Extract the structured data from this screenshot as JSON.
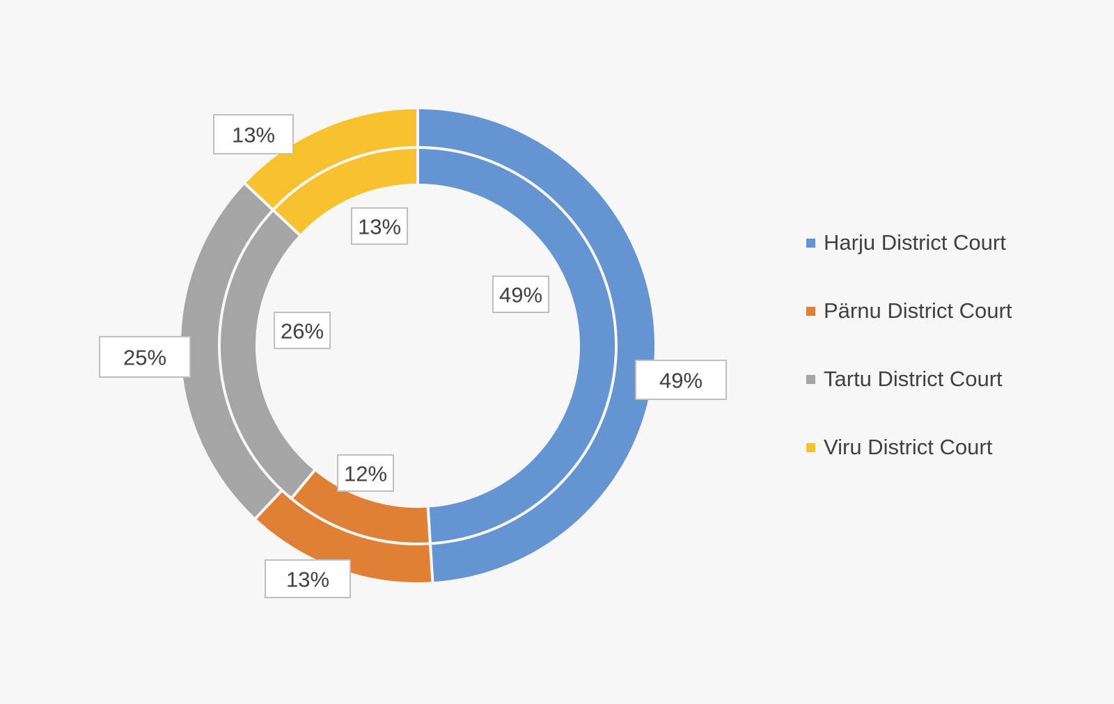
{
  "chart_data": {
    "type": "pie",
    "subtype": "doughnut",
    "categories": [
      "Harju District Court",
      "Pärnu District Court",
      "Tartu District Court",
      "Viru District Court"
    ],
    "series": [
      {
        "ring": "outer",
        "values": [
          49,
          13,
          25,
          13
        ],
        "labels": [
          "49%",
          "13%",
          "25%",
          "13%"
        ]
      },
      {
        "ring": "inner",
        "values": [
          49,
          12,
          26,
          13
        ],
        "labels": [
          "49%",
          "12%",
          "26%",
          "13%"
        ]
      }
    ],
    "colors": [
      "#6495d1",
      "#e07f36",
      "#a5a5a5",
      "#f8c12e"
    ],
    "legend_position": "right",
    "title": ""
  }
}
